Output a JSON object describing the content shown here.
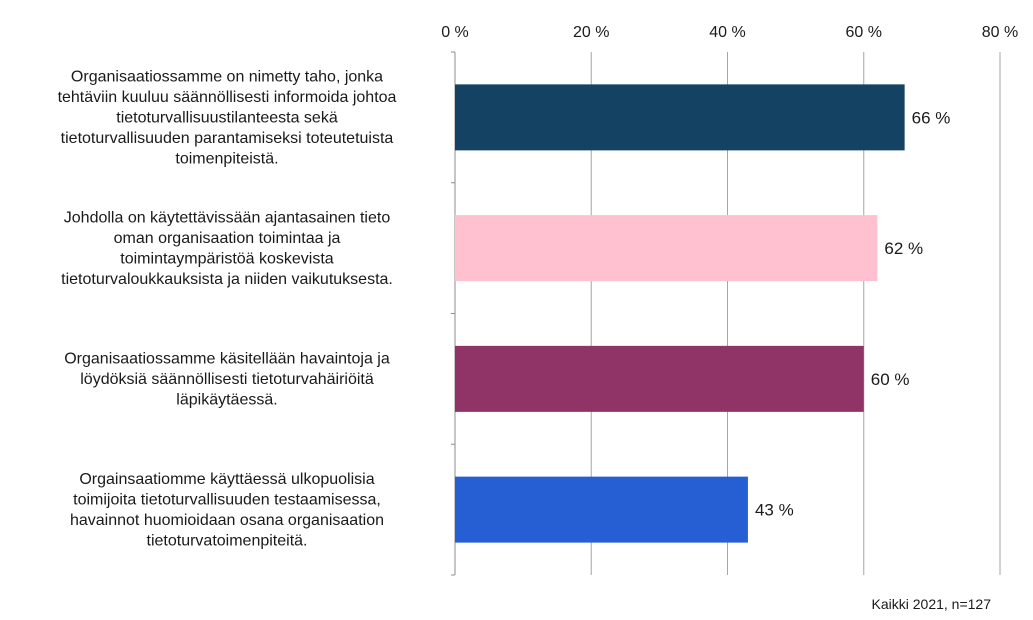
{
  "chart_data": {
    "type": "bar",
    "orientation": "horizontal",
    "categories": [
      [
        "Organisaatiossamme on nimetty taho, jonka",
        "tehtäviin kuuluu säännöllisesti informoida johtoa",
        "tietoturvallisuustilanteesta sekä",
        "tietoturvallisuuden parantamiseksi toteutetuista",
        "toimenpiteistä."
      ],
      [
        "Johdolla on käytettävissään ajantasainen tieto",
        "oman organisaation toimintaa ja",
        "toimintaympäristöä koskevista",
        "tietoturvaloukkauksista ja niiden vaikutuksesta."
      ],
      [
        "Organisaatiossamme käsitellään havaintoja ja",
        "löydöksiä säännöllisesti tietoturvahäiriöitä",
        "läpikäytäessä."
      ],
      [
        "Orgainsaatiomme käyttäessä ulkopuolisia",
        "toimijoita tietoturvallisuuden testaamisessa,",
        "havainnot huomioidaan osana organisaation",
        "tietoturvatoimenpiteitä."
      ]
    ],
    "values": [
      66,
      62,
      60,
      43
    ],
    "value_labels": [
      "66 %",
      "62 %",
      "60 %",
      "43 %"
    ],
    "bar_colors": [
      "#134263",
      "#FFC1CF",
      "#903366",
      "#265FD3"
    ],
    "xlim": [
      0,
      80
    ],
    "xticks": [
      0,
      20,
      40,
      60,
      80
    ],
    "xtick_labels": [
      "0 %",
      "20 %",
      "40 %",
      "60 %",
      "80 %"
    ],
    "x_axis_position": "top",
    "grid": true,
    "title": "",
    "xlabel": "",
    "ylabel": ""
  },
  "footnote": "Kaikki 2021, n=127"
}
